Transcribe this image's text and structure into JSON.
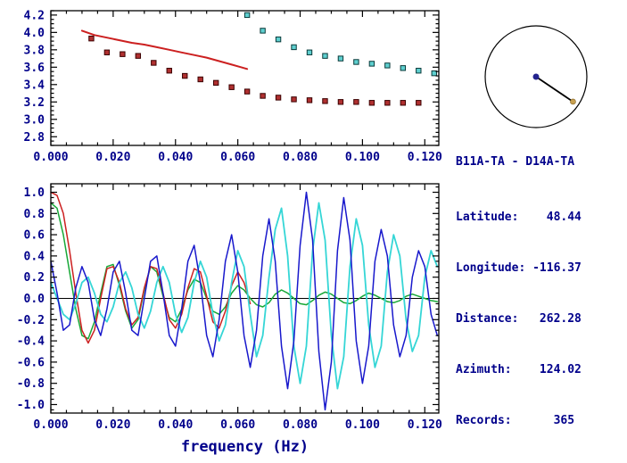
{
  "station_pair": "B11A-TA - D14A-TA",
  "info": {
    "lines": [
      "Latitude:    48.44",
      "Longitude: -116.37",
      "Distance:   262.28",
      "Azimuth:    124.02",
      "Records:      365"
    ]
  },
  "colors": {
    "text": "#00008B",
    "frame": "#000000",
    "red": "#CC2020",
    "dark_red_square": "#B03030",
    "cyan_square": "#5ECFCF",
    "green": "#18A838",
    "blue": "#1818CC",
    "cyan": "#35D6D6"
  },
  "compass": {
    "azimuth_deg": 124.02,
    "ring_color": "#000000",
    "center_dot_color": "#23238E",
    "end_dot_color": "#C8A050"
  },
  "chart_data": [
    {
      "type": "scatter",
      "title": "",
      "xlabel": "",
      "ylabel": "",
      "xlim": [
        0.0,
        0.1245
      ],
      "ylim": [
        2.7,
        4.25
      ],
      "grid": false,
      "xticks": {
        "values": [
          0.0,
          0.02,
          0.04,
          0.06,
          0.08,
          0.1,
          0.12
        ],
        "labels": [
          "0.000",
          "0.020",
          "0.040",
          "0.060",
          "0.080",
          "0.100",
          "0.120"
        ]
      },
      "yticks": {
        "values": [
          2.8,
          3.0,
          3.2,
          3.4,
          3.6,
          3.8,
          4.0,
          4.2
        ],
        "labels": [
          "2.8",
          "3.0",
          "3.2",
          "3.4",
          "3.6",
          "3.8",
          "4.0",
          "4.2"
        ]
      },
      "series": [
        {
          "name": "red-reference-curve",
          "type": "line",
          "color": "#CC2020",
          "width": 2,
          "x": [
            0.01,
            0.014,
            0.018,
            0.022,
            0.026,
            0.03,
            0.034,
            0.038,
            0.042,
            0.046,
            0.05,
            0.054,
            0.058,
            0.061,
            0.063
          ],
          "y": [
            4.02,
            3.97,
            3.94,
            3.91,
            3.88,
            3.86,
            3.83,
            3.8,
            3.77,
            3.74,
            3.71,
            3.67,
            3.63,
            3.6,
            3.58
          ]
        },
        {
          "name": "dark-red-dispersion-points",
          "type": "scatter-square",
          "color": "#B03030",
          "edge": "#3A0000",
          "x": [
            0.013,
            0.018,
            0.023,
            0.028,
            0.033,
            0.038,
            0.043,
            0.048,
            0.053,
            0.058,
            0.063,
            0.068,
            0.073,
            0.078,
            0.083,
            0.088,
            0.093,
            0.098,
            0.103,
            0.108,
            0.113,
            0.118
          ],
          "y": [
            3.93,
            3.77,
            3.75,
            3.73,
            3.65,
            3.56,
            3.5,
            3.46,
            3.42,
            3.37,
            3.32,
            3.27,
            3.25,
            3.23,
            3.22,
            3.21,
            3.2,
            3.2,
            3.19,
            3.19,
            3.19,
            3.19
          ]
        },
        {
          "name": "cyan-dispersion-points",
          "type": "scatter-square",
          "color": "#5ECFCF",
          "edge": "#0A3A3A",
          "x": [
            0.063,
            0.068,
            0.073,
            0.078,
            0.083,
            0.088,
            0.093,
            0.098,
            0.103,
            0.108,
            0.113,
            0.118,
            0.123
          ],
          "y": [
            4.2,
            4.02,
            3.92,
            3.83,
            3.77,
            3.73,
            3.7,
            3.66,
            3.64,
            3.62,
            3.59,
            3.56,
            3.53
          ]
        }
      ]
    },
    {
      "type": "line",
      "title": "",
      "xlabel": "frequency (Hz)",
      "ylabel": "",
      "xlim": [
        0.0,
        0.1245
      ],
      "ylim": [
        -1.08,
        1.08
      ],
      "grid": false,
      "zero_line": true,
      "xticks": {
        "values": [
          0.0,
          0.02,
          0.04,
          0.06,
          0.08,
          0.1,
          0.12
        ],
        "labels": [
          "0.000",
          "0.020",
          "0.040",
          "0.060",
          "0.080",
          "0.100",
          "0.120"
        ]
      },
      "yticks": {
        "values": [
          -1.0,
          -0.8,
          -0.6,
          -0.4,
          -0.2,
          0.0,
          0.2,
          0.4,
          0.6,
          0.8,
          1.0
        ],
        "labels": [
          "-1.0",
          "-0.8",
          "-0.6",
          "-0.4",
          "-0.2",
          "0.0",
          "0.2",
          "0.4",
          "0.6",
          "0.8",
          "1.0"
        ]
      },
      "series": [
        {
          "name": "green-waveform",
          "type": "line",
          "color": "#18A838",
          "width": 1.5,
          "x_start": 0.0,
          "x_step": 0.002,
          "y": [
            0.9,
            0.85,
            0.6,
            0.25,
            -0.1,
            -0.35,
            -0.38,
            -0.22,
            0.05,
            0.3,
            0.32,
            0.12,
            -0.12,
            -0.28,
            -0.2,
            0.08,
            0.3,
            0.25,
            0.02,
            -0.18,
            -0.22,
            -0.1,
            0.08,
            0.18,
            0.15,
            0.0,
            -0.12,
            -0.15,
            -0.08,
            0.05,
            0.12,
            0.08,
            0.0,
            -0.06,
            -0.08,
            -0.04,
            0.04,
            0.08,
            0.05,
            0.0,
            -0.05,
            -0.06,
            -0.02,
            0.03,
            0.06,
            0.04,
            0.0,
            -0.04,
            -0.05,
            -0.02,
            0.02,
            0.05,
            0.03,
            0.0,
            -0.03,
            -0.04,
            -0.02,
            0.02,
            0.04,
            0.02,
            0.0,
            -0.02,
            -0.03
          ]
        },
        {
          "name": "red-waveform",
          "type": "line",
          "color": "#CC2020",
          "width": 1.5,
          "x_start": 0.0,
          "x_step": 0.002,
          "y": [
            1.0,
            0.97,
            0.8,
            0.45,
            0.05,
            -0.3,
            -0.42,
            -0.3,
            0.0,
            0.28,
            0.3,
            0.15,
            -0.1,
            -0.25,
            -0.18,
            0.1,
            0.3,
            0.28,
            0.05,
            -0.2,
            -0.28,
            -0.15,
            0.1,
            0.28,
            0.25,
            0.02,
            -0.22,
            -0.28,
            -0.12,
            0.12,
            0.25,
            0.15,
            -0.05
          ]
        },
        {
          "name": "cyan-waveform",
          "type": "line",
          "color": "#35D6D6",
          "width": 1.8,
          "x_start": 0.0,
          "x_step": 0.002,
          "y": [
            0.15,
            0.0,
            -0.15,
            -0.2,
            -0.05,
            0.15,
            0.2,
            0.05,
            -0.15,
            -0.22,
            -0.08,
            0.15,
            0.25,
            0.1,
            -0.15,
            -0.28,
            -0.12,
            0.15,
            0.3,
            0.15,
            -0.15,
            -0.32,
            -0.18,
            0.15,
            0.35,
            0.2,
            -0.15,
            -0.4,
            -0.25,
            0.15,
            0.45,
            0.3,
            -0.15,
            -0.55,
            -0.35,
            0.2,
            0.65,
            0.85,
            0.4,
            -0.45,
            -0.8,
            -0.45,
            0.45,
            0.9,
            0.55,
            -0.35,
            -0.85,
            -0.55,
            0.3,
            0.75,
            0.5,
            -0.25,
            -0.65,
            -0.45,
            0.25,
            0.6,
            0.4,
            -0.2,
            -0.5,
            -0.35,
            0.2,
            0.45,
            0.3
          ]
        },
        {
          "name": "blue-waveform",
          "type": "line",
          "color": "#1818CC",
          "width": 1.5,
          "x_start": 0.0,
          "x_step": 0.002,
          "y": [
            0.35,
            0.05,
            -0.3,
            -0.25,
            0.1,
            0.3,
            0.15,
            -0.2,
            -0.35,
            -0.1,
            0.25,
            0.35,
            0.05,
            -0.3,
            -0.35,
            0.0,
            0.35,
            0.4,
            0.05,
            -0.35,
            -0.45,
            -0.1,
            0.35,
            0.5,
            0.15,
            -0.35,
            -0.55,
            -0.2,
            0.35,
            0.6,
            0.25,
            -0.35,
            -0.65,
            -0.3,
            0.4,
            0.75,
            0.35,
            -0.45,
            -0.85,
            -0.4,
            0.5,
            1.0,
            0.55,
            -0.5,
            -1.05,
            -0.6,
            0.45,
            0.95,
            0.55,
            -0.4,
            -0.8,
            -0.45,
            0.35,
            0.65,
            0.4,
            -0.25,
            -0.55,
            -0.35,
            0.2,
            0.45,
            0.3,
            -0.15,
            -0.35
          ]
        }
      ]
    }
  ]
}
